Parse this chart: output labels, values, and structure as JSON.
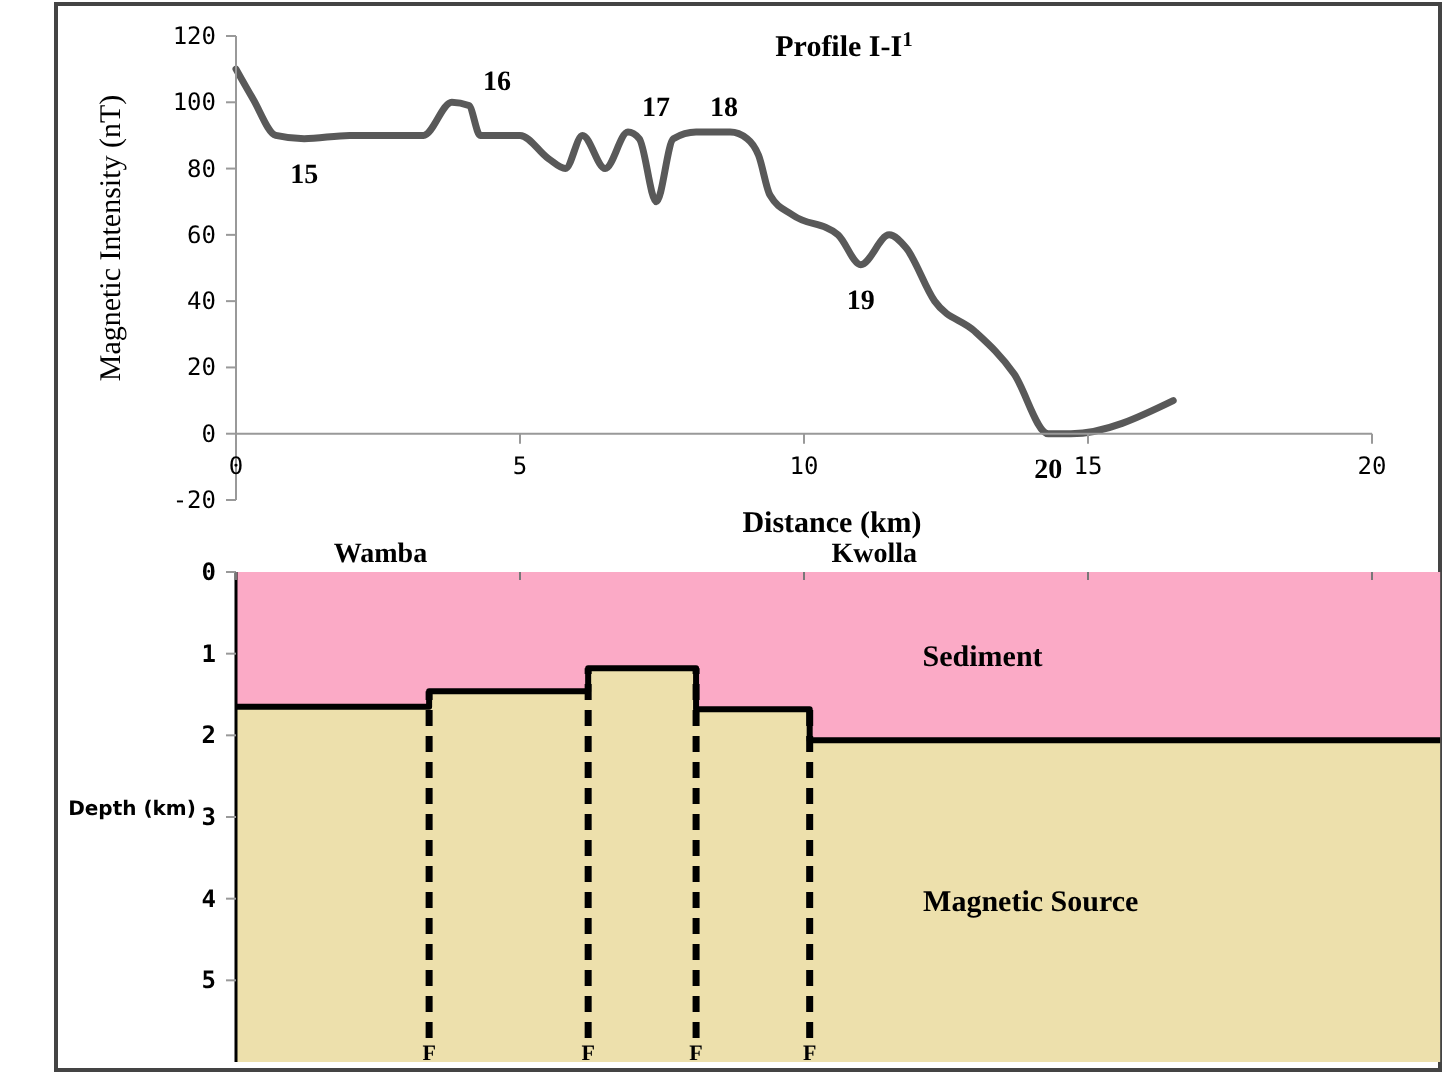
{
  "chart_data": [
    {
      "type": "line",
      "title": "Profile I-I$^{1}$",
      "xlabel": "Distance (km)",
      "ylabel": "Magnetic Intensity (nT)",
      "xlim": [
        0,
        20
      ],
      "xticks": [
        0,
        5,
        10,
        15,
        20
      ],
      "ylim": [
        -20,
        120
      ],
      "yticks": [
        -20,
        0,
        20,
        40,
        60,
        80,
        100,
        120
      ],
      "grid": false,
      "legend": false,
      "marker": "none",
      "line_style": "solid",
      "series": [
        {
          "color": "#595959",
          "x": [
            0,
            0.3,
            0.7,
            1.2,
            2,
            3,
            3.3,
            3.8,
            4.1,
            4.3,
            4.7,
            5,
            5.5,
            5.8,
            6.1,
            6.5,
            6.9,
            7.1,
            7.4,
            7.7,
            8.1,
            8.7,
            9,
            9.2,
            9.4,
            9.8,
            10.6,
            11,
            11.5,
            11.8,
            12.3,
            13,
            13.7,
            14.3,
            14.7,
            16.5
          ],
          "values": [
            110,
            101,
            90,
            89,
            90,
            90,
            90,
            100,
            99,
            90,
            90,
            90,
            83,
            80,
            90,
            80,
            91,
            89,
            70,
            89,
            91,
            91,
            89,
            84,
            72,
            66,
            60,
            51,
            60,
            56,
            40,
            31,
            18,
            0,
            0,
            10
          ]
        }
      ],
      "annotations": [
        {
          "text": "15",
          "x": 1.2,
          "y": 89
        },
        {
          "text": "16",
          "x": 4.1,
          "y": 99
        },
        {
          "text": "17",
          "x": 6.9,
          "y": 91
        },
        {
          "text": "18",
          "x": 8.1,
          "y": 91
        },
        {
          "text": "19",
          "x": 11,
          "y": 51
        },
        {
          "text": "20",
          "x": 14.3,
          "y": 0
        }
      ]
    },
    {
      "type": "area",
      "stacked": true,
      "ylabel": "Depth (km)",
      "xlim": [
        0,
        21.2
      ],
      "xticks": [
        0,
        5,
        10,
        15,
        20
      ],
      "ylim": [
        6,
        0
      ],
      "yticks": [
        0,
        1,
        2,
        3,
        4,
        5
      ],
      "tick_labels": "y",
      "grid": false,
      "legend": false,
      "x": [
        0,
        3.4,
        3.4,
        6.2,
        6.2,
        8.1,
        8.1,
        10.1,
        10.1,
        21.2
      ],
      "series": [
        {
          "name": "Sediment",
          "color": "#fbaac6",
          "values": [
            1.65,
            1.65,
            1.46,
            1.46,
            1.18,
            1.18,
            1.68,
            1.68,
            2.06,
            2.06
          ]
        },
        {
          "name": "Magnetic Source",
          "color": "#ede0ac",
          "values": [
            4.35,
            4.35,
            4.54,
            4.54,
            4.82,
            4.82,
            4.32,
            4.32,
            3.94,
            3.94
          ]
        }
      ],
      "ref_lines": [
        {
          "axis": "x",
          "value": 3.4,
          "label": "F",
          "line_style": "dashed"
        },
        {
          "axis": "x",
          "value": 6.2,
          "label": "F",
          "line_style": "dashed"
        },
        {
          "axis": "x",
          "value": 8.1,
          "label": "F",
          "line_style": "dashed"
        },
        {
          "axis": "x",
          "value": 10.1,
          "label": "F",
          "line_style": "dashed"
        }
      ],
      "annotations": [
        "Wamba",
        "Kwolla"
      ]
    }
  ]
}
